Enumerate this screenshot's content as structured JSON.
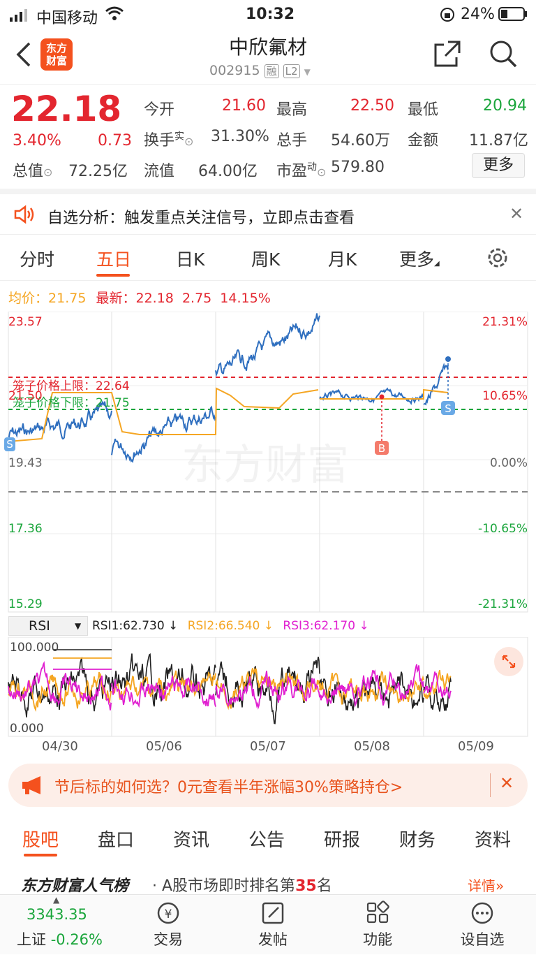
{
  "status_bar": {
    "carrier": "中国移动",
    "time": "10:32",
    "battery": "24%"
  },
  "header": {
    "logo_line1": "东方",
    "logo_line2": "财富",
    "stock_name": "中欣氟材",
    "stock_code": "002915",
    "badge_rong": "融",
    "badge_level": "L2"
  },
  "quote": {
    "price": "22.18",
    "change_pct": "3.40%",
    "change": "0.73",
    "open_label": "今开",
    "open": "21.60",
    "high_label": "最高",
    "high": "22.50",
    "low_label": "最低",
    "low": "20.94",
    "turnover_label": "换手",
    "turnover_sup": "实",
    "turnover": "31.30%",
    "volume_label": "总手",
    "volume": "54.60万",
    "amount_label": "金额",
    "amount": "11.87亿",
    "mktcap_label": "总值",
    "mktcap": "72.25亿",
    "float_label": "流值",
    "float_cap": "64.00亿",
    "pe_label": "市盈",
    "pe_sup": "动",
    "pe": "579.80",
    "more_button": "更多"
  },
  "analysis_banner": {
    "text": "自选分析：触发重点关注信号，立即点击查看"
  },
  "chart_tabs": [
    "分时",
    "五日",
    "日K",
    "周K",
    "月K",
    "更多"
  ],
  "active_tab": "五日",
  "chart_info": {
    "avg_label": "均价：",
    "avg": "21.75",
    "latest_label": "最新：",
    "latest": "22.18",
    "latest_change": "2.75",
    "latest_pct": "14.15%"
  },
  "price_chart": {
    "y_left": [
      "23.57",
      "21.50",
      "19.43",
      "17.36",
      "15.29"
    ],
    "y_right": [
      "21.31%",
      "10.65%",
      "0.00%",
      "-10.65%",
      "-21.31%"
    ],
    "upper_limit_label": "笼子价格上限：22.64",
    "lower_limit_label": "笼子价格下限：21.75",
    "watermark": "东方财富",
    "marker_b": "B",
    "marker_s": "S"
  },
  "rsi": {
    "selector": "RSI",
    "rsi1": "RSI1:62.730 ↓",
    "rsi2": "RSI2:66.540 ↓",
    "rsi3": "RSI3:62.170 ↓",
    "y_top": "100.000",
    "y_bottom": "0.000"
  },
  "x_dates": [
    "04/30",
    "05/06",
    "05/07",
    "05/08",
    "05/09"
  ],
  "ad_banner": {
    "text": "节后标的如何选？0元查看半年涨幅30%策略持仓>"
  },
  "bottom_tabs": [
    "股吧",
    "盘口",
    "资讯",
    "公告",
    "研报",
    "财务",
    "资料"
  ],
  "rank": {
    "brand": "东方财富人气榜",
    "text": "A股市场即时排名第",
    "rank_num": "35",
    "suffix": "名",
    "detail": "详情"
  },
  "index": {
    "value": "3343.35",
    "name": "上证",
    "change": "-0.26%"
  },
  "nav": [
    "交易",
    "发帖",
    "功能",
    "设自选"
  ],
  "colors": {
    "up": "#e3262f",
    "down": "#1aa53b",
    "brand": "#f4511e",
    "price_line": "#2f6fbf",
    "avg_line": "#f5a623",
    "rsi3": "#e020d0"
  }
}
